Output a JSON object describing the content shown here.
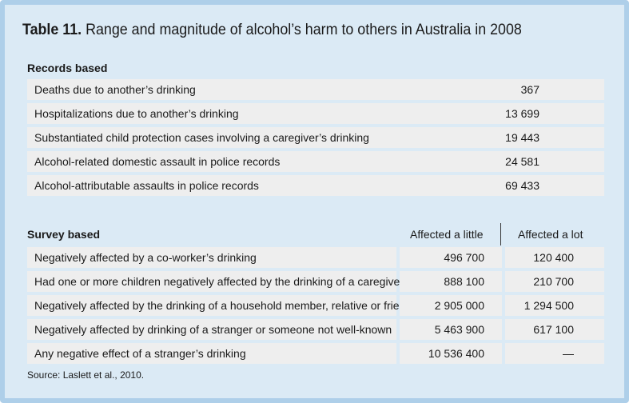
{
  "title": {
    "label": "Table 11.",
    "text": " Range and magnitude of alcohol’s harm to others in Australia in 2008"
  },
  "records": {
    "heading": "Records based",
    "rows": [
      {
        "label": "Deaths due to another’s drinking",
        "value": "367"
      },
      {
        "label": "Hospitalizations due to another’s drinking",
        "value": "13 699"
      },
      {
        "label": "Substantiated child protection cases involving a caregiver’s drinking",
        "value": "19 443"
      },
      {
        "label": "Alcohol-related domestic assault in police records",
        "value": "24 581"
      },
      {
        "label": "Alcohol-attributable assaults in police records",
        "value": "69 433"
      }
    ]
  },
  "survey": {
    "heading": "Survey based",
    "col_little": "Affected a little",
    "col_lot": "Affected a lot",
    "rows": [
      {
        "label": "Negatively affected by a co-worker’s drinking",
        "little": "496 700",
        "lot": "120 400"
      },
      {
        "label": "Had one or more children negatively affected by the drinking of a caregiver",
        "little": "888 100",
        "lot": "210 700"
      },
      {
        "label": "Negatively affected by the drinking of a household member, relative or friend",
        "little": "2 905 000",
        "lot": "1 294 500"
      },
      {
        "label": "Negatively affected by drinking of a stranger or someone not well-known",
        "little": "5 463 900",
        "lot": "617 100"
      },
      {
        "label": "Any negative effect of a stranger’s drinking",
        "little": "10 536 400",
        "lot": "—"
      }
    ]
  },
  "source": "Source: Laslett et al., 2010."
}
